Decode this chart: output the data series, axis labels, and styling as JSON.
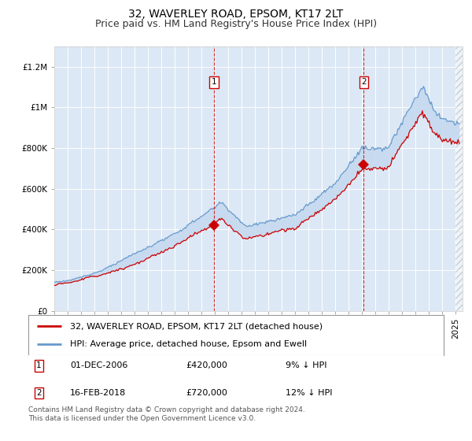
{
  "title": "32, WAVERLEY ROAD, EPSOM, KT17 2LT",
  "subtitle": "Price paid vs. HM Land Registry's House Price Index (HPI)",
  "ylim": [
    0,
    1300000
  ],
  "yticks": [
    0,
    200000,
    400000,
    600000,
    800000,
    1000000,
    1200000
  ],
  "ytick_labels": [
    "£0",
    "£200K",
    "£400K",
    "£600K",
    "£800K",
    "£1M",
    "£1.2M"
  ],
  "background_color": "#ffffff",
  "plot_bg_color": "#dce8f5",
  "grid_color": "#ffffff",
  "hpi_color": "#6699cc",
  "hpi_fill_color": "#c5d9ef",
  "price_color": "#cc0000",
  "xmin": 1995.0,
  "xmax": 2025.5,
  "sale1_year": 2006.92,
  "sale1_price": 420000,
  "sale2_year": 2018.12,
  "sale2_price": 720000,
  "sale1_date": "01-DEC-2006",
  "sale2_date": "16-FEB-2018",
  "sale1_amt": "£420,000",
  "sale2_amt": "£720,000",
  "sale1_pct": "9% ↓ HPI",
  "sale2_pct": "12% ↓ HPI",
  "legend_label1": "32, WAVERLEY ROAD, EPSOM, KT17 2LT (detached house)",
  "legend_label2": "HPI: Average price, detached house, Epsom and Ewell",
  "footer": "Contains HM Land Registry data © Crown copyright and database right 2024.\nThis data is licensed under the Open Government Licence v3.0.",
  "title_fontsize": 10,
  "subtitle_fontsize": 9,
  "tick_fontsize": 7.5,
  "legend_fontsize": 8,
  "ann_fontsize": 8,
  "footer_fontsize": 6.5
}
